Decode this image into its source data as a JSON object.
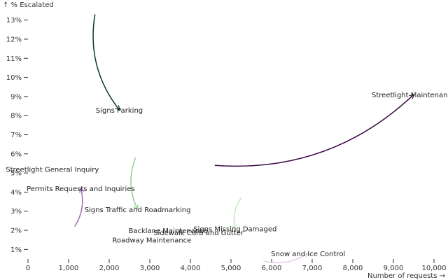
{
  "chart_data": {
    "type": "scatter",
    "title": "",
    "xlabel": "Number of requests →",
    "ylabel": "↑ % Escalated",
    "xlim": [
      0,
      10000
    ],
    "ylim": [
      0.5,
      13.5
    ],
    "x_ticks": [
      0,
      1000,
      2000,
      3000,
      4000,
      5000,
      6000,
      7000,
      8000,
      9000,
      10000
    ],
    "y_ticks": [
      1,
      2,
      3,
      4,
      5,
      6,
      7,
      8,
      9,
      10,
      11,
      12,
      13
    ],
    "x_tick_labels": [
      "0",
      "1,000",
      "2,000",
      "3,000",
      "4,000",
      "5,000",
      "6,000",
      "7,000",
      "8,000",
      "9,000",
      "10,000"
    ],
    "y_tick_labels": [
      "1%",
      "2%",
      "3%",
      "4%",
      "5%",
      "6%",
      "7%",
      "8%",
      "9%",
      "10%",
      "11%",
      "12%",
      "13%"
    ],
    "grid": false,
    "series": [
      {
        "label": "Streetlight Maintenance",
        "from": [
          4600,
          5.4
        ],
        "to": [
          9500,
          9.1
        ],
        "color": "#3b0a45"
      },
      {
        "label": "Signs Parking",
        "from": [
          1650,
          13.3
        ],
        "to": [
          2250,
          8.3
        ],
        "color": "#0b3d1a"
      },
      {
        "label": "Signs Traffic and Roadmarking",
        "from": [
          2650,
          5.8
        ],
        "to": [
          2700,
          3.1
        ],
        "color": "#8fcf8a"
      },
      {
        "label": "Permits Requests and Inquiries",
        "from": [
          1150,
          2.2
        ],
        "to": [
          1300,
          4.2
        ],
        "color": "#9b6fb8"
      },
      {
        "label": "Signs Missing Damaged",
        "from": [
          5250,
          3.7
        ],
        "to": [
          5100,
          2.1
        ],
        "color": "#c4e7bf"
      },
      {
        "label": "Snow and Ice Control",
        "from": [
          5800,
          0.4
        ],
        "to": [
          6900,
          0.8
        ],
        "color": "#e2cde9"
      }
    ],
    "static_labels": [
      {
        "label": "Streetlight General Inquiry",
        "x": 600,
        "y": 5.2
      },
      {
        "label": "Backlane Maintenance",
        "x": 3450,
        "y": 2.0
      },
      {
        "label": "Sidewalk Curb and Gutter",
        "x": 4200,
        "y": 1.9
      },
      {
        "label": "Roadway Maintenance",
        "x": 3050,
        "y": 1.5
      }
    ]
  }
}
